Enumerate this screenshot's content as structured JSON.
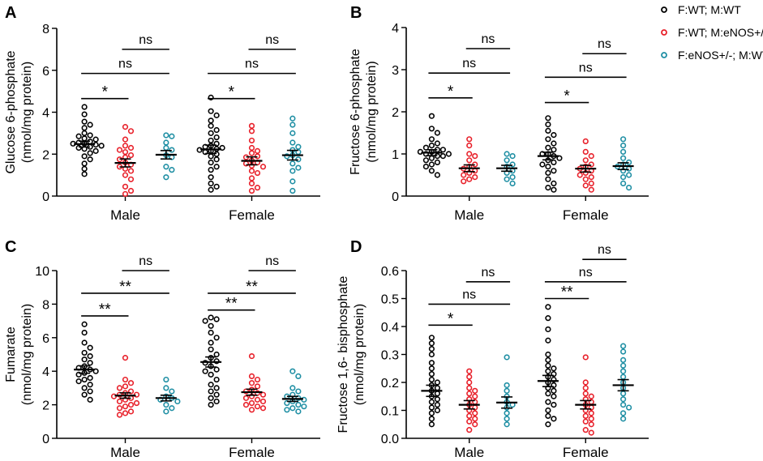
{
  "legend": [
    {
      "label": "F:WT; M:WT",
      "color": "#000000"
    },
    {
      "label": "F:WT; M:eNOS+/-",
      "color": "#e8202a"
    },
    {
      "label": "F:eNOS+/-; M:WT",
      "color": "#1f8fa4"
    }
  ],
  "chart_data": [
    {
      "type": "scatter",
      "panel": "A",
      "ylabel": "Glucose 6-phosphate",
      "ylabel2": "(nmol/mg protein)",
      "ylim": [
        0,
        8
      ],
      "yticks": [
        0,
        2,
        4,
        6,
        8
      ],
      "ytick_labels": [
        "0",
        "2",
        "4",
        "6",
        "8"
      ],
      "categories": [
        "Male",
        "Female"
      ],
      "series": [
        {
          "name": "F:WT; M:WT",
          "color": "#000000",
          "points": [
            [
              4.25,
              3.9,
              3.55,
              3.4,
              3.25,
              3.0,
              2.9,
              2.85,
              2.75,
              2.7,
              2.6,
              2.55,
              2.5,
              2.5,
              2.45,
              2.4,
              2.35,
              2.3,
              2.25,
              2.15,
              2.05,
              1.9,
              1.75,
              1.55,
              1.3,
              1.05
            ],
            [
              4.7,
              4.05,
              3.85,
              3.6,
              3.35,
              3.15,
              3.0,
              2.8,
              2.65,
              2.5,
              2.4,
              2.35,
              2.3,
              2.25,
              2.2,
              2.15,
              2.1,
              2.0,
              1.9,
              1.75,
              1.6,
              1.4,
              1.25,
              0.9,
              0.6,
              0.45,
              0.3
            ]
          ],
          "mean": [
            2.48,
            2.23
          ],
          "sem": [
            0.14,
            0.2
          ]
        },
        {
          "name": "F:WT; M:eNOS+/-",
          "color": "#e8202a",
          "points": [
            [
              3.3,
              3.1,
              2.7,
              2.4,
              2.3,
              2.2,
              2.1,
              1.95,
              1.85,
              1.75,
              1.6,
              1.5,
              1.4,
              1.3,
              1.2,
              1.0,
              0.8,
              0.45,
              0.25,
              0.1
            ],
            [
              3.35,
              3.1,
              2.65,
              2.3,
              2.15,
              2.05,
              1.9,
              1.85,
              1.7,
              1.6,
              1.55,
              1.45,
              1.4,
              1.2,
              1.1,
              0.85,
              0.6,
              0.4,
              0.25
            ]
          ],
          "mean": [
            1.58,
            1.68
          ],
          "sem": [
            0.19,
            0.19
          ]
        },
        {
          "name": "F:eNOS+/-; M:WT",
          "color": "#1f8fa4",
          "points": [
            [
              2.9,
              2.85,
              2.55,
              2.3,
              2.2,
              1.95,
              1.85,
              1.4,
              1.25,
              0.9
            ],
            [
              3.7,
              3.4,
              3.0,
              2.55,
              2.35,
              2.2,
              2.1,
              1.95,
              1.9,
              1.75,
              1.55,
              1.35,
              1.2,
              0.7,
              0.25
            ]
          ],
          "mean": [
            1.97,
            1.95
          ],
          "sem": [
            0.2,
            0.23
          ]
        }
      ],
      "comparisons": [
        {
          "label": "*",
          "cat": 0,
          "from": 0,
          "to": 1,
          "y": 4.65
        },
        {
          "label": "ns",
          "cat": 0,
          "from": 0,
          "to": 2,
          "y": 5.85
        },
        {
          "label": "ns",
          "cat": 0,
          "from": 1,
          "to": 2,
          "y": 7.0
        },
        {
          "label": "*",
          "cat": 1,
          "from": 0,
          "to": 1,
          "y": 4.65
        },
        {
          "label": "ns",
          "cat": 1,
          "from": 0,
          "to": 2,
          "y": 5.85
        },
        {
          "label": "ns",
          "cat": 1,
          "from": 1,
          "to": 2,
          "y": 7.0
        }
      ]
    },
    {
      "type": "scatter",
      "panel": "B",
      "ylabel": "Fructose 6-phosphate",
      "ylabel2": "(nmol/mg protein)",
      "ylim": [
        0,
        4
      ],
      "yticks": [
        0,
        1,
        2,
        3,
        4
      ],
      "ytick_labels": [
        "0",
        "1",
        "2",
        "3",
        "4"
      ],
      "categories": [
        "Male",
        "Female"
      ],
      "series": [
        {
          "name": "F:WT; M:WT",
          "color": "#000000",
          "points": [
            [
              1.9,
              1.6,
              1.5,
              1.35,
              1.25,
              1.2,
              1.15,
              1.1,
              1.1,
              1.05,
              1.05,
              1.0,
              1.0,
              0.95,
              0.95,
              0.9,
              0.85,
              0.8,
              0.75,
              0.7,
              0.6,
              0.5
            ],
            [
              1.85,
              1.7,
              1.55,
              1.45,
              1.35,
              1.25,
              1.15,
              1.1,
              1.0,
              1.0,
              0.95,
              0.9,
              0.85,
              0.8,
              0.75,
              0.7,
              0.6,
              0.55,
              0.4,
              0.3,
              0.2,
              0.15
            ]
          ],
          "mean": [
            1.03,
            0.95
          ],
          "sem": [
            0.07,
            0.09
          ]
        },
        {
          "name": "F:WT; M:eNOS+/-",
          "color": "#e8202a",
          "points": [
            [
              1.35,
              1.2,
              1.0,
              0.95,
              0.85,
              0.75,
              0.7,
              0.65,
              0.6,
              0.55,
              0.5,
              0.45,
              0.4,
              0.35
            ],
            [
              1.3,
              1.05,
              0.95,
              0.85,
              0.75,
              0.7,
              0.65,
              0.6,
              0.55,
              0.5,
              0.45,
              0.4,
              0.3,
              0.25,
              0.15
            ]
          ],
          "mean": [
            0.66,
            0.65
          ],
          "sem": [
            0.08,
            0.08
          ]
        },
        {
          "name": "F:eNOS+/-; M:WT",
          "color": "#1f8fa4",
          "points": [
            [
              1.0,
              0.95,
              0.85,
              0.75,
              0.7,
              0.6,
              0.55,
              0.45,
              0.4,
              0.3
            ],
            [
              1.35,
              1.2,
              1.05,
              0.9,
              0.8,
              0.75,
              0.7,
              0.65,
              0.6,
              0.5,
              0.45,
              0.3,
              0.2
            ]
          ],
          "mean": [
            0.66,
            0.71
          ],
          "sem": [
            0.07,
            0.08
          ]
        }
      ],
      "comparisons": [
        {
          "label": "*",
          "cat": 0,
          "from": 0,
          "to": 1,
          "y": 2.33
        },
        {
          "label": "ns",
          "cat": 0,
          "from": 0,
          "to": 2,
          "y": 2.92
        },
        {
          "label": "ns",
          "cat": 0,
          "from": 1,
          "to": 2,
          "y": 3.5
        },
        {
          "label": "*",
          "cat": 1,
          "from": 0,
          "to": 1,
          "y": 2.22
        },
        {
          "label": "ns",
          "cat": 1,
          "from": 0,
          "to": 2,
          "y": 2.82
        },
        {
          "label": "ns",
          "cat": 1,
          "from": 1,
          "to": 2,
          "y": 3.38
        }
      ]
    },
    {
      "type": "scatter",
      "panel": "C",
      "ylabel": "Fumarate",
      "ylabel2": "(nmol/mg protein)",
      "ylim": [
        0,
        10
      ],
      "yticks": [
        0,
        2,
        4,
        6,
        8,
        10
      ],
      "ytick_labels": [
        "0",
        "2",
        "4",
        "6",
        "8",
        "10"
      ],
      "categories": [
        "Male",
        "Female"
      ],
      "series": [
        {
          "name": "F:WT; M:WT",
          "color": "#000000",
          "points": [
            [
              6.8,
              6.3,
              5.7,
              5.4,
              5.1,
              4.9,
              4.7,
              4.5,
              4.3,
              4.2,
              4.1,
              4.0,
              3.9,
              3.8,
              3.6,
              3.5,
              3.4,
              3.2,
              3.0,
              2.8,
              2.6,
              2.3
            ],
            [
              7.2,
              7.1,
              7.0,
              6.7,
              6.3,
              6.0,
              5.7,
              5.3,
              5.0,
              4.8,
              4.6,
              4.5,
              4.3,
              4.1,
              4.0,
              3.8,
              3.5,
              3.2,
              3.0,
              2.8,
              2.6,
              2.4,
              2.2,
              2.0
            ]
          ],
          "mean": [
            4.1,
            4.55
          ],
          "sem": [
            0.22,
            0.3
          ]
        },
        {
          "name": "F:WT; M:eNOS+/-",
          "color": "#e8202a",
          "points": [
            [
              4.8,
              3.5,
              3.3,
              3.1,
              3.0,
              2.8,
              2.7,
              2.6,
              2.6,
              2.5,
              2.4,
              2.3,
              2.2,
              2.1,
              2.0,
              1.9,
              1.8,
              1.6,
              1.5,
              1.4
            ],
            [
              4.9,
              3.7,
              3.5,
              3.3,
              3.1,
              2.9,
              2.8,
              2.7,
              2.6,
              2.5,
              2.4,
              2.3,
              2.2,
              2.1,
              2.0,
              1.9,
              1.8,
              1.7
            ]
          ],
          "mean": [
            2.55,
            2.75
          ],
          "sem": [
            0.16,
            0.18
          ]
        },
        {
          "name": "F:eNOS+/-; M:WT",
          "color": "#1f8fa4",
          "points": [
            [
              3.5,
              3.0,
              2.8,
              2.5,
              2.4,
              2.3,
              2.2,
              2.0,
              1.8,
              1.6
            ],
            [
              4.0,
              3.7,
              3.0,
              2.8,
              2.6,
              2.5,
              2.4,
              2.3,
              2.2,
              2.1,
              2.0,
              1.9,
              1.8,
              1.7,
              1.6
            ]
          ],
          "mean": [
            2.4,
            2.35
          ],
          "sem": [
            0.17,
            0.15
          ]
        }
      ],
      "comparisons": [
        {
          "label": "**",
          "cat": 0,
          "from": 0,
          "to": 1,
          "y": 7.3
        },
        {
          "label": "**",
          "cat": 0,
          "from": 0,
          "to": 2,
          "y": 8.65
        },
        {
          "label": "ns",
          "cat": 0,
          "from": 1,
          "to": 2,
          "y": 10.0
        },
        {
          "label": "**",
          "cat": 1,
          "from": 0,
          "to": 1,
          "y": 7.65
        },
        {
          "label": "**",
          "cat": 1,
          "from": 0,
          "to": 2,
          "y": 8.65
        },
        {
          "label": "ns",
          "cat": 1,
          "from": 1,
          "to": 2,
          "y": 10.0
        }
      ]
    },
    {
      "type": "scatter",
      "panel": "D",
      "ylabel": "Fructose 1,6- bisphosphate",
      "ylabel2": "(nmol/mg protein)",
      "ylim": [
        0,
        0.6
      ],
      "yticks": [
        0,
        0.1,
        0.2,
        0.3,
        0.4,
        0.5,
        0.6
      ],
      "ytick_labels": [
        "0.0",
        "0.1",
        "0.2",
        "0.3",
        "0.4",
        "0.5",
        "0.6"
      ],
      "categories": [
        "Male",
        "Female"
      ],
      "series": [
        {
          "name": "F:WT; M:WT",
          "color": "#000000",
          "points": [
            [
              0.36,
              0.34,
              0.32,
              0.3,
              0.27,
              0.25,
              0.23,
              0.21,
              0.2,
              0.19,
              0.18,
              0.17,
              0.16,
              0.15,
              0.14,
              0.13,
              0.12,
              0.11,
              0.1,
              0.09,
              0.07,
              0.05
            ],
            [
              0.47,
              0.43,
              0.39,
              0.35,
              0.3,
              0.28,
              0.26,
              0.25,
              0.24,
              0.23,
              0.22,
              0.21,
              0.2,
              0.19,
              0.18,
              0.17,
              0.16,
              0.15,
              0.13,
              0.12,
              0.1,
              0.08,
              0.07,
              0.05
            ]
          ],
          "mean": [
            0.17,
            0.205
          ],
          "sem": [
            0.02,
            0.02
          ]
        },
        {
          "name": "F:WT; M:eNOS+/-",
          "color": "#e8202a",
          "points": [
            [
              0.24,
              0.22,
              0.2,
              0.18,
              0.17,
              0.16,
              0.15,
              0.14,
              0.13,
              0.12,
              0.11,
              0.1,
              0.09,
              0.08,
              0.07,
              0.06,
              0.05,
              0.03
            ],
            [
              0.29,
              0.2,
              0.18,
              0.16,
              0.15,
              0.14,
              0.13,
              0.12,
              0.11,
              0.1,
              0.09,
              0.08,
              0.07,
              0.06,
              0.05,
              0.03,
              0.02
            ]
          ],
          "mean": [
            0.12,
            0.12
          ],
          "sem": [
            0.015,
            0.015
          ]
        },
        {
          "name": "F:eNOS+/-; M:WT",
          "color": "#1f8fa4",
          "points": [
            [
              0.29,
              0.19,
              0.17,
              0.15,
              0.13,
              0.12,
              0.11,
              0.09,
              0.07,
              0.05
            ],
            [
              0.33,
              0.31,
              0.28,
              0.26,
              0.24,
              0.22,
              0.2,
              0.18,
              0.16,
              0.14,
              0.12,
              0.11,
              0.09,
              0.07
            ]
          ],
          "mean": [
            0.128,
            0.19
          ],
          "sem": [
            0.02,
            0.02
          ]
        }
      ],
      "comparisons": [
        {
          "label": "*",
          "cat": 0,
          "from": 0,
          "to": 1,
          "y": 0.405
        },
        {
          "label": "ns",
          "cat": 0,
          "from": 0,
          "to": 2,
          "y": 0.48
        },
        {
          "label": "ns",
          "cat": 0,
          "from": 1,
          "to": 2,
          "y": 0.56
        },
        {
          "label": "**",
          "cat": 1,
          "from": 0,
          "to": 1,
          "y": 0.5
        },
        {
          "label": "ns",
          "cat": 1,
          "from": 0,
          "to": 2,
          "y": 0.56
        },
        {
          "label": "ns",
          "cat": 1,
          "from": 1,
          "to": 2,
          "y": 0.64
        }
      ]
    }
  ]
}
